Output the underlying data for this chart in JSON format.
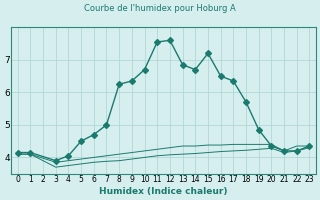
{
  "title": "Courbe de l'humidex pour Hoburg A",
  "xlabel": "Humidex (Indice chaleur)",
  "ylabel": "",
  "background_color": "#d6eeee",
  "grid_color": "#aad4d4",
  "line_color": "#1a7a6e",
  "x_data": [
    0,
    1,
    2,
    3,
    4,
    5,
    6,
    7,
    8,
    9,
    10,
    11,
    12,
    13,
    14,
    15,
    16,
    17,
    18,
    19,
    20,
    21,
    22,
    23
  ],
  "y_main": [
    4.15,
    4.15,
    null,
    3.9,
    4.05,
    4.5,
    4.7,
    5.0,
    6.25,
    6.35,
    6.7,
    7.55,
    7.6,
    6.85,
    6.7,
    7.2,
    6.5,
    6.35,
    5.7,
    4.85,
    4.35,
    4.2,
    4.2,
    4.35
  ],
  "y_flat1": [
    4.1,
    4.1,
    null,
    3.85,
    3.9,
    3.95,
    4.0,
    4.05,
    4.1,
    4.15,
    4.2,
    4.25,
    4.3,
    4.35,
    4.35,
    4.38,
    4.38,
    4.4,
    4.4,
    4.4,
    4.4,
    4.2,
    4.35,
    4.35
  ],
  "y_flat2": [
    4.1,
    4.1,
    null,
    3.7,
    3.75,
    3.8,
    3.85,
    3.88,
    3.9,
    3.95,
    4.0,
    4.05,
    4.08,
    4.1,
    4.12,
    4.15,
    4.18,
    4.2,
    4.22,
    4.25,
    4.28,
    4.15,
    4.2,
    4.3
  ],
  "xlim": [
    -0.5,
    23.5
  ],
  "ylim": [
    3.5,
    8.0
  ],
  "yticks": [
    4,
    5,
    6,
    7
  ],
  "xticks": [
    0,
    1,
    2,
    3,
    4,
    5,
    6,
    7,
    8,
    9,
    10,
    11,
    12,
    13,
    14,
    15,
    16,
    17,
    18,
    19,
    20,
    21,
    22,
    23
  ],
  "figsize": [
    3.2,
    2.0
  ],
  "dpi": 100
}
